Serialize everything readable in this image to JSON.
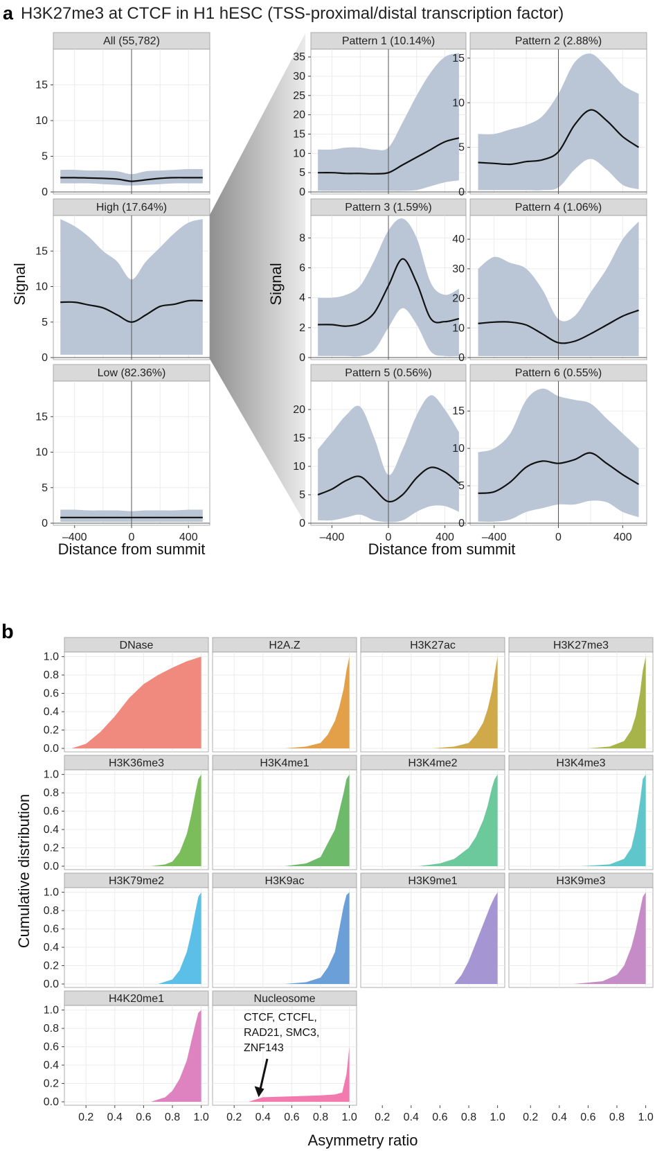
{
  "figure": {
    "panel_a_letter": "a",
    "panel_a_title": "H3K27me3 at CTCF in H1 hESC (TSS-proximal/distal transcription factor)",
    "panel_b_letter": "b"
  },
  "colors": {
    "ribbon": "#bac6d6",
    "line": "#111111",
    "strip_bg": "#d9d9d9",
    "grid": "#ebebeb",
    "dnase": "#f0897e",
    "h2az": "#e3a048",
    "h3k27ac": "#cfa94a",
    "h3k27me3": "#a7b44a",
    "h3k36me3": "#7bbd5a",
    "h3k4me1": "#6dbb6a",
    "h3k4me2": "#6cc99c",
    "h3k4me3": "#5fc6cc",
    "h3k79me2": "#5cbfe8",
    "h3k9ac": "#6a9fd8",
    "h3k9me1": "#a595d2",
    "h3k9me3": "#c58cc8",
    "h4k20me1": "#de82c0",
    "nucleosome": "#f27aaf"
  },
  "chart_data": [
    {
      "type": "line",
      "panel": "a-left",
      "xlabel": "Distance from summit",
      "ylabel": "Signal",
      "x_ticks": [
        "–400",
        "0",
        "400"
      ],
      "x_range": [
        -500,
        500
      ],
      "vline_at_x": 0,
      "facets": [
        {
          "label": "All (55,782)",
          "ylim": [
            0,
            20
          ],
          "y_ticks": [
            0,
            5,
            10,
            15
          ],
          "x": [
            -500,
            -400,
            -300,
            -200,
            -100,
            0,
            100,
            200,
            300,
            400,
            500
          ],
          "mean": [
            2.0,
            2.0,
            1.95,
            1.9,
            1.8,
            1.5,
            1.7,
            1.9,
            2.0,
            2.0,
            2.0
          ],
          "upper": [
            3.1,
            3.1,
            3.0,
            3.0,
            2.9,
            2.5,
            2.9,
            3.0,
            3.1,
            3.2,
            3.2
          ],
          "lower": [
            1.2,
            1.2,
            1.2,
            1.1,
            1.0,
            0.9,
            1.0,
            1.1,
            1.2,
            1.2,
            1.2
          ]
        },
        {
          "label": "High (17.64%)",
          "ylim": [
            0,
            20
          ],
          "y_ticks": [
            0,
            5,
            10,
            15
          ],
          "x": [
            -500,
            -400,
            -300,
            -200,
            -100,
            0,
            100,
            200,
            300,
            400,
            500
          ],
          "mean": [
            7.8,
            7.8,
            7.4,
            7.0,
            6.0,
            5.0,
            6.0,
            7.2,
            7.5,
            8.0,
            8.0
          ],
          "upper": [
            19.5,
            18.5,
            17.0,
            15.0,
            13.5,
            11.0,
            13.5,
            15.5,
            17.5,
            19.0,
            19.5
          ],
          "lower": [
            0.4,
            0.4,
            0.4,
            0.4,
            0.4,
            0.4,
            0.4,
            0.4,
            0.4,
            0.4,
            0.4
          ]
        },
        {
          "label": "Low (82.36%)",
          "ylim": [
            0,
            20
          ],
          "y_ticks": [
            0,
            5,
            10,
            15
          ],
          "x": [
            -500,
            -400,
            -300,
            -200,
            -100,
            0,
            100,
            200,
            300,
            400,
            500
          ],
          "mean": [
            0.8,
            0.8,
            0.8,
            0.8,
            0.8,
            0.8,
            0.8,
            0.8,
            0.8,
            0.8,
            0.8
          ],
          "upper": [
            1.9,
            1.9,
            1.8,
            1.8,
            1.8,
            1.7,
            1.8,
            1.8,
            1.8,
            1.9,
            1.9
          ],
          "lower": [
            0.2,
            0.2,
            0.2,
            0.2,
            0.2,
            0.2,
            0.2,
            0.2,
            0.2,
            0.2,
            0.2
          ]
        }
      ]
    },
    {
      "type": "line",
      "panel": "a-right",
      "xlabel": "Distance from summit",
      "ylabel": "Signal",
      "x_ticks": [
        "–400",
        "0",
        "400"
      ],
      "x_range": [
        -500,
        500
      ],
      "vline_at_x": 0,
      "facets": [
        {
          "label": "Pattern 1 (10.14%)",
          "ylim": [
            0,
            37
          ],
          "y_ticks": [
            0,
            5,
            10,
            15,
            20,
            25,
            30,
            35
          ],
          "x": [
            -500,
            -400,
            -300,
            -200,
            -100,
            0,
            100,
            200,
            300,
            400,
            500
          ],
          "mean": [
            5.0,
            5.0,
            4.8,
            4.8,
            4.7,
            5.0,
            7.0,
            9.0,
            11.0,
            13.0,
            14.0
          ],
          "upper": [
            11.0,
            11.0,
            11.5,
            11.5,
            11.0,
            11.5,
            18.0,
            25.0,
            31.0,
            35.0,
            36.0
          ],
          "lower": [
            0.3,
            0.3,
            0.3,
            0.3,
            0.3,
            0.3,
            0.3,
            0.5,
            1.5,
            2.5,
            3.0
          ]
        },
        {
          "label": "Pattern 2 (2.88%)",
          "ylim": [
            0,
            16
          ],
          "y_ticks": [
            0,
            5,
            10,
            15
          ],
          "x": [
            -500,
            -400,
            -300,
            -200,
            -100,
            0,
            100,
            200,
            300,
            400,
            500
          ],
          "mean": [
            3.3,
            3.2,
            3.1,
            3.4,
            3.6,
            4.5,
            7.5,
            9.2,
            8.0,
            6.2,
            5.0
          ],
          "upper": [
            6.5,
            6.5,
            7.0,
            7.5,
            8.5,
            11.0,
            14.5,
            15.5,
            14.0,
            12.0,
            11.0
          ],
          "lower": [
            0.2,
            0.2,
            0.2,
            0.2,
            0.2,
            0.5,
            2.5,
            3.7,
            2.5,
            0.8,
            0.3
          ]
        },
        {
          "label": "Pattern 3 (1.59%)",
          "ylim": [
            0,
            9.5
          ],
          "y_ticks": [
            0,
            2,
            4,
            6,
            8
          ],
          "x": [
            -500,
            -400,
            -300,
            -200,
            -100,
            0,
            100,
            200,
            300,
            400,
            500
          ],
          "mean": [
            2.2,
            2.2,
            2.1,
            2.3,
            3.0,
            4.8,
            6.6,
            5.0,
            2.6,
            2.4,
            2.6
          ],
          "upper": [
            4.0,
            4.0,
            4.2,
            4.8,
            6.5,
            8.5,
            9.3,
            8.0,
            5.0,
            4.2,
            4.6
          ],
          "lower": [
            0.1,
            0.1,
            0.1,
            0.1,
            0.5,
            2.0,
            3.3,
            2.2,
            0.4,
            0.1,
            0.1
          ]
        },
        {
          "label": "Pattern 4 (1.06%)",
          "ylim": [
            0,
            48
          ],
          "y_ticks": [
            0,
            10,
            20,
            30,
            40
          ],
          "x": [
            -500,
            -400,
            -300,
            -200,
            -100,
            0,
            100,
            200,
            300,
            400,
            500
          ],
          "mean": [
            11.5,
            12.0,
            12.0,
            11.0,
            8.0,
            5.0,
            5.5,
            8.0,
            11.0,
            14.0,
            16.0
          ],
          "upper": [
            30.0,
            34.0,
            32.0,
            30.0,
            23.0,
            13.0,
            14.0,
            22.0,
            30.0,
            40.0,
            46.0
          ],
          "lower": [
            0.5,
            0.5,
            0.5,
            0.5,
            0.5,
            0.5,
            0.5,
            0.5,
            0.5,
            0.5,
            0.5
          ]
        },
        {
          "label": "Pattern 5 (0.56%)",
          "ylim": [
            0,
            25
          ],
          "y_ticks": [
            0,
            5,
            10,
            15,
            20
          ],
          "x": [
            -500,
            -400,
            -300,
            -200,
            -100,
            0,
            100,
            200,
            300,
            400,
            500
          ],
          "mean": [
            5.0,
            6.0,
            7.5,
            8.2,
            6.0,
            3.8,
            5.0,
            8.0,
            9.8,
            9.0,
            7.0
          ],
          "upper": [
            13.0,
            16.0,
            19.0,
            20.5,
            15.0,
            8.5,
            13.0,
            19.0,
            22.5,
            20.0,
            16.0
          ],
          "lower": [
            0.5,
            0.5,
            1.0,
            1.5,
            0.5,
            0.2,
            0.5,
            2.0,
            3.0,
            3.0,
            2.0
          ]
        },
        {
          "label": "Pattern 6 (0.55%)",
          "ylim": [
            0,
            19
          ],
          "y_ticks": [
            0,
            5,
            10,
            15
          ],
          "x": [
            -500,
            -400,
            -300,
            -200,
            -100,
            0,
            100,
            200,
            300,
            400,
            500
          ],
          "mean": [
            4.0,
            4.2,
            5.5,
            7.5,
            8.3,
            8.0,
            8.5,
            9.4,
            8.0,
            6.5,
            5.2
          ],
          "upper": [
            9.5,
            10.0,
            12.0,
            16.5,
            18.0,
            17.0,
            16.5,
            16.0,
            14.0,
            12.0,
            10.0
          ],
          "lower": [
            0.2,
            0.2,
            0.5,
            1.5,
            2.0,
            2.5,
            2.5,
            3.0,
            2.8,
            1.5,
            0.8
          ]
        }
      ]
    },
    {
      "type": "area",
      "panel": "b",
      "xlabel": "Asymmetry ratio",
      "ylabel": "Cumulative distribution",
      "ylim": [
        0,
        1.05
      ],
      "y_ticks": [
        "0.0",
        "0.2",
        "0.4",
        "0.6",
        "0.8",
        "1.0"
      ],
      "x_ticks": [
        "0.2",
        "0.4",
        "0.6",
        "0.8",
        "1.0"
      ],
      "xlim": [
        0.05,
        1.05
      ],
      "annotation": {
        "text": [
          "CTCF, CTCFL,",
          "RAD21, SMC3,",
          "ZNF143"
        ],
        "arrow_to": [
          0.37,
          0.02
        ]
      },
      "facets": [
        {
          "label": "DNase",
          "color_key": "dnase",
          "x": [
            0.1,
            0.2,
            0.3,
            0.4,
            0.5,
            0.6,
            0.7,
            0.8,
            0.9,
            0.98,
            1.0
          ],
          "y": [
            0.0,
            0.05,
            0.18,
            0.35,
            0.55,
            0.7,
            0.8,
            0.88,
            0.95,
            0.99,
            1.0
          ]
        },
        {
          "label": "H2A.Z",
          "color_key": "h2az",
          "x": [
            0.55,
            0.7,
            0.8,
            0.85,
            0.9,
            0.93,
            0.96,
            0.98,
            1.0
          ],
          "y": [
            0.0,
            0.02,
            0.06,
            0.15,
            0.3,
            0.45,
            0.65,
            0.85,
            1.0
          ]
        },
        {
          "label": "H3K27ac",
          "color_key": "h3k27ac",
          "x": [
            0.55,
            0.7,
            0.8,
            0.85,
            0.9,
            0.93,
            0.96,
            0.98,
            1.0
          ],
          "y": [
            0.0,
            0.02,
            0.06,
            0.15,
            0.28,
            0.42,
            0.62,
            0.82,
            1.0
          ]
        },
        {
          "label": "H3K27me3",
          "color_key": "h3k27me3",
          "x": [
            0.6,
            0.75,
            0.85,
            0.9,
            0.93,
            0.96,
            0.98,
            1.0
          ],
          "y": [
            0.0,
            0.02,
            0.08,
            0.2,
            0.35,
            0.6,
            0.85,
            1.0
          ]
        },
        {
          "label": "H3K36me3",
          "color_key": "h3k36me3",
          "x": [
            0.65,
            0.75,
            0.8,
            0.85,
            0.9,
            0.93,
            0.96,
            0.98,
            1.0
          ],
          "y": [
            0.0,
            0.02,
            0.05,
            0.15,
            0.35,
            0.55,
            0.8,
            0.95,
            1.0
          ]
        },
        {
          "label": "H3K4me1",
          "color_key": "h3k4me1",
          "x": [
            0.55,
            0.7,
            0.8,
            0.85,
            0.9,
            0.93,
            0.96,
            0.98,
            1.0
          ],
          "y": [
            0.0,
            0.03,
            0.1,
            0.25,
            0.4,
            0.6,
            0.8,
            0.95,
            1.0
          ]
        },
        {
          "label": "H3K4me2",
          "color_key": "h3k4me2",
          "x": [
            0.45,
            0.6,
            0.7,
            0.8,
            0.85,
            0.9,
            0.93,
            0.96,
            0.98,
            1.0
          ],
          "y": [
            0.0,
            0.03,
            0.08,
            0.2,
            0.32,
            0.5,
            0.65,
            0.85,
            0.95,
            1.0
          ]
        },
        {
          "label": "H3K4me3",
          "color_key": "h3k4me3",
          "x": [
            0.55,
            0.75,
            0.85,
            0.9,
            0.93,
            0.96,
            0.98,
            1.0
          ],
          "y": [
            0.0,
            0.02,
            0.08,
            0.2,
            0.4,
            0.7,
            0.95,
            1.0
          ]
        },
        {
          "label": "H3K79me2",
          "color_key": "h3k79me2",
          "x": [
            0.7,
            0.8,
            0.85,
            0.9,
            0.93,
            0.96,
            0.98,
            1.0
          ],
          "y": [
            0.0,
            0.05,
            0.15,
            0.35,
            0.55,
            0.8,
            0.95,
            1.0
          ]
        },
        {
          "label": "H3K9ac",
          "color_key": "h3k9ac",
          "x": [
            0.55,
            0.7,
            0.8,
            0.85,
            0.9,
            0.93,
            0.96,
            0.98,
            1.0
          ],
          "y": [
            0.0,
            0.02,
            0.07,
            0.18,
            0.35,
            0.6,
            0.85,
            0.97,
            1.0
          ]
        },
        {
          "label": "H3K9me1",
          "color_key": "h3k9me1",
          "x": [
            0.7,
            0.75,
            0.8,
            0.85,
            0.9,
            0.95,
            0.98,
            1.0
          ],
          "y": [
            0.0,
            0.1,
            0.25,
            0.45,
            0.65,
            0.85,
            0.95,
            1.0
          ]
        },
        {
          "label": "H3K9me3",
          "color_key": "h3k9me3",
          "x": [
            0.5,
            0.7,
            0.8,
            0.85,
            0.9,
            0.93,
            0.96,
            0.98,
            1.0
          ],
          "y": [
            0.0,
            0.03,
            0.1,
            0.2,
            0.4,
            0.58,
            0.8,
            0.95,
            1.0
          ]
        },
        {
          "label": "H4K20me1",
          "color_key": "h4k20me1",
          "x": [
            0.65,
            0.75,
            0.8,
            0.85,
            0.9,
            0.93,
            0.96,
            0.98,
            1.0
          ],
          "y": [
            0.0,
            0.05,
            0.12,
            0.25,
            0.45,
            0.65,
            0.85,
            0.97,
            1.0
          ]
        },
        {
          "label": "Nucleosome",
          "color_key": "nucleosome",
          "x": [
            0.3,
            0.4,
            0.6,
            0.8,
            0.9,
            0.95,
            0.98,
            1.0
          ],
          "y": [
            0.0,
            0.05,
            0.06,
            0.07,
            0.08,
            0.1,
            0.3,
            0.6
          ]
        }
      ]
    }
  ]
}
